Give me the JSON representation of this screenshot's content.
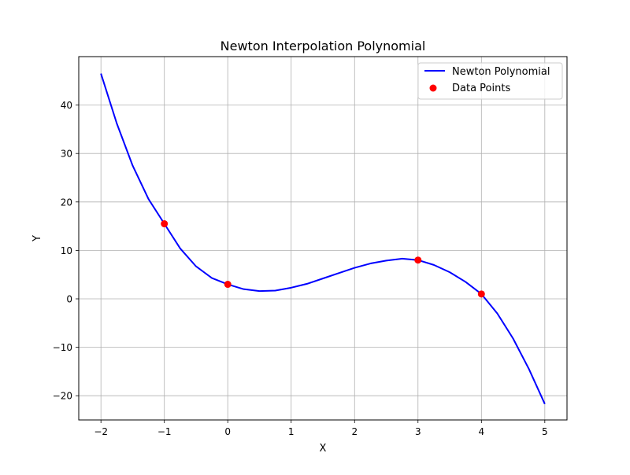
{
  "chart_data": {
    "type": "line",
    "title": "Newton Interpolation Polynomial",
    "xlabel": "X",
    "ylabel": "Y",
    "xlim": [
      -2.35,
      5.35
    ],
    "ylim": [
      -25,
      50
    ],
    "xticks": [
      -2,
      -1,
      0,
      1,
      2,
      3,
      4,
      5
    ],
    "xtick_labels": [
      "−2",
      "−1",
      "0",
      "1",
      "2",
      "3",
      "4",
      "5"
    ],
    "yticks": [
      -20,
      -10,
      0,
      10,
      20,
      30,
      40
    ],
    "ytick_labels": [
      "−20",
      "−10",
      "0",
      "10",
      "20",
      "30",
      "40"
    ],
    "grid": true,
    "legend_position": "top-right",
    "series": [
      {
        "name": "Newton Polynomial",
        "kind": "line",
        "color": "#0000ff",
        "x": [
          -2,
          -1.75,
          -1.5,
          -1.25,
          -1,
          -0.75,
          -0.5,
          -0.25,
          0,
          0.25,
          0.5,
          0.75,
          1,
          1.25,
          1.5,
          1.75,
          2,
          2.25,
          2.5,
          2.75,
          3,
          3.25,
          3.5,
          3.75,
          4,
          4.25,
          4.5,
          4.75,
          5
        ],
        "y": [
          46.5,
          36.2,
          27.5,
          20.6,
          15.5,
          10.4,
          6.7,
          4.3,
          3.0,
          2.0,
          1.6,
          1.7,
          2.3,
          3.1,
          4.2,
          5.3,
          6.4,
          7.3,
          7.9,
          8.3,
          8.0,
          7.0,
          5.5,
          3.5,
          1.0,
          -3.0,
          -8.2,
          -14.5,
          -21.7
        ]
      },
      {
        "name": "Data Points",
        "kind": "scatter",
        "color": "#ff0000",
        "x": [
          -1,
          0,
          3,
          4
        ],
        "y": [
          15.5,
          3,
          8,
          1
        ]
      }
    ]
  }
}
